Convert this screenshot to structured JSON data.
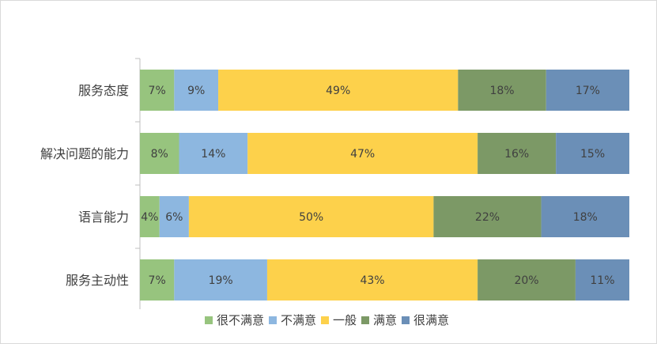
{
  "chart_data": {
    "type": "bar",
    "orientation": "horizontal",
    "stacked": "percent",
    "categories": [
      "服务态度",
      "解决问题的能力",
      "语言能力",
      "服务主动性"
    ],
    "series": [
      {
        "name": "很不满意",
        "color": "#97c47e",
        "values": [
          7,
          8,
          4,
          7
        ],
        "labels": [
          "7%",
          "8%",
          "4%",
          "7%"
        ]
      },
      {
        "name": "不满意",
        "color": "#8db7e0",
        "values": [
          9,
          14,
          6,
          19
        ],
        "labels": [
          "9%",
          "14%",
          "6%",
          "19%"
        ]
      },
      {
        "name": "一般",
        "color": "#fdd14b",
        "values": [
          49,
          47,
          50,
          43
        ],
        "labels": [
          "49%",
          "47%",
          "50%",
          "43%"
        ]
      },
      {
        "name": "满意",
        "color": "#7c9966",
        "values": [
          18,
          16,
          22,
          20
        ],
        "labels": [
          "18%",
          "16%",
          "22%",
          "20%"
        ]
      },
      {
        "name": "很满意",
        "color": "#6b8fb7",
        "values": [
          17,
          15,
          18,
          11
        ],
        "labels": [
          "17%",
          "15%",
          "18%",
          "11%"
        ]
      }
    ],
    "xlim": [
      0,
      100
    ],
    "grid": false,
    "legend_position": "bottom"
  }
}
